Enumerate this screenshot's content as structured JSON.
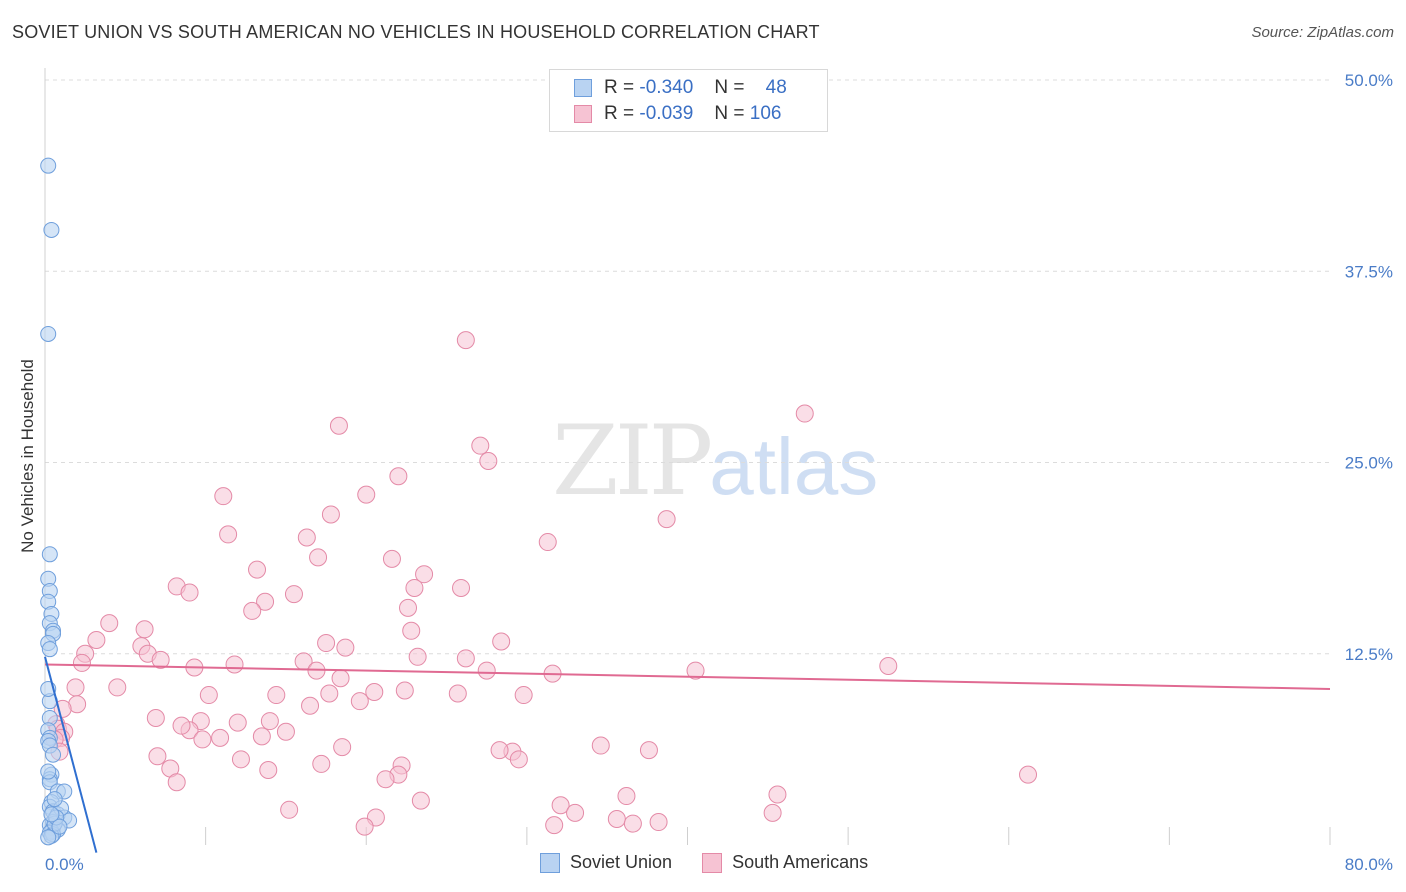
{
  "title": "SOVIET UNION VS SOUTH AMERICAN NO VEHICLES IN HOUSEHOLD CORRELATION CHART",
  "source": "Source: ZipAtlas.com",
  "watermark": {
    "zip": "ZIP",
    "atlas": "atlas"
  },
  "legend": {
    "rows": [
      {
        "r_label": "R =",
        "r_value": "-0.340",
        "n_label": "N =",
        "n_value": "48"
      },
      {
        "r_label": "R =",
        "r_value": "-0.039",
        "n_label": "N =",
        "n_value": "106"
      }
    ]
  },
  "bottom_legend": {
    "soviet": "Soviet Union",
    "south": "South Americans"
  },
  "colors": {
    "blue_fill": "#b9d3f2",
    "blue_stroke": "#6f9fdc",
    "blue_line": "#2f6fd0",
    "pink_fill": "#f6c3d3",
    "pink_stroke": "#e48aa7",
    "pink_line": "#e06a92",
    "grid": "#dcdcdc",
    "tick_text": "#4a7cc7"
  },
  "chart_data": {
    "type": "scatter",
    "title": "SOVIET UNION VS SOUTH AMERICAN NO VEHICLES IN HOUSEHOLD CORRELATION CHART",
    "xlabel": "",
    "ylabel": "No Vehicles in Household",
    "xlim": [
      0,
      80
    ],
    "ylim": [
      0,
      50
    ],
    "x_tick_labels": [
      "0.0%",
      "80.0%"
    ],
    "y_ticks": [
      12.5,
      25.0,
      37.5,
      50.0
    ],
    "y_tick_labels": [
      "12.5%",
      "25.0%",
      "37.5%",
      "50.0%"
    ],
    "grid": true,
    "series": [
      {
        "name": "Soviet Union",
        "r": -0.34,
        "n": 48,
        "trend": {
          "x0": 0.0,
          "y0": 12.3,
          "x1": 3.2,
          "y1": -0.5
        },
        "points": [
          [
            0.2,
            44.4
          ],
          [
            0.4,
            40.2
          ],
          [
            0.2,
            33.4
          ],
          [
            0.3,
            19.0
          ],
          [
            0.2,
            17.4
          ],
          [
            0.3,
            16.6
          ],
          [
            0.2,
            15.9
          ],
          [
            0.4,
            15.1
          ],
          [
            0.3,
            14.5
          ],
          [
            0.5,
            14.0
          ],
          [
            0.5,
            13.8
          ],
          [
            0.2,
            13.2
          ],
          [
            0.3,
            9.4
          ],
          [
            0.3,
            8.3
          ],
          [
            0.2,
            7.5
          ],
          [
            0.3,
            7.0
          ],
          [
            0.2,
            6.8
          ],
          [
            0.3,
            6.5
          ],
          [
            0.4,
            4.6
          ],
          [
            0.3,
            4.3
          ],
          [
            0.3,
            4.1
          ],
          [
            0.8,
            3.5
          ],
          [
            1.2,
            3.5
          ],
          [
            0.4,
            2.8
          ],
          [
            0.3,
            2.5
          ],
          [
            0.5,
            2.2
          ],
          [
            0.8,
            2.0
          ],
          [
            1.2,
            1.8
          ],
          [
            1.5,
            1.6
          ],
          [
            0.5,
            1.5
          ],
          [
            0.3,
            1.3
          ],
          [
            0.5,
            1.1
          ],
          [
            0.8,
            1.0
          ],
          [
            0.4,
            0.9
          ],
          [
            0.3,
            0.8
          ],
          [
            0.5,
            0.7
          ],
          [
            0.4,
            0.6
          ],
          [
            0.2,
            0.5
          ],
          [
            0.6,
            1.4
          ],
          [
            1.0,
            2.4
          ],
          [
            0.7,
            1.8
          ],
          [
            0.2,
            4.8
          ],
          [
            0.6,
            3.0
          ],
          [
            0.9,
            1.2
          ],
          [
            0.3,
            12.8
          ],
          [
            0.5,
            5.9
          ],
          [
            0.2,
            10.2
          ],
          [
            0.4,
            2.0
          ]
        ]
      },
      {
        "name": "South Americans",
        "r": -0.039,
        "n": 106,
        "trend": {
          "x0": 0.0,
          "y0": 11.8,
          "x1": 80.0,
          "y1": 10.2
        },
        "points": [
          [
            26.2,
            33.0
          ],
          [
            18.3,
            27.4
          ],
          [
            27.1,
            26.1
          ],
          [
            27.6,
            25.1
          ],
          [
            22.0,
            24.1
          ],
          [
            20.0,
            22.9
          ],
          [
            11.1,
            22.8
          ],
          [
            17.8,
            21.6
          ],
          [
            38.7,
            21.3
          ],
          [
            11.4,
            20.3
          ],
          [
            16.3,
            20.1
          ],
          [
            31.3,
            19.8
          ],
          [
            17.0,
            18.8
          ],
          [
            21.6,
            18.7
          ],
          [
            13.2,
            18.0
          ],
          [
            23.6,
            17.7
          ],
          [
            8.2,
            16.9
          ],
          [
            9.0,
            16.5
          ],
          [
            25.9,
            16.8
          ],
          [
            23.0,
            16.8
          ],
          [
            15.5,
            16.4
          ],
          [
            13.7,
            15.9
          ],
          [
            12.9,
            15.3
          ],
          [
            22.6,
            15.5
          ],
          [
            4.0,
            14.5
          ],
          [
            6.2,
            14.1
          ],
          [
            22.8,
            14.0
          ],
          [
            3.2,
            13.4
          ],
          [
            28.4,
            13.3
          ],
          [
            17.5,
            13.2
          ],
          [
            6.0,
            13.0
          ],
          [
            18.7,
            12.9
          ],
          [
            2.5,
            12.5
          ],
          [
            6.4,
            12.5
          ],
          [
            16.1,
            12.0
          ],
          [
            26.2,
            12.2
          ],
          [
            23.2,
            12.3
          ],
          [
            7.2,
            12.1
          ],
          [
            2.3,
            11.9
          ],
          [
            11.8,
            11.8
          ],
          [
            9.3,
            11.6
          ],
          [
            16.9,
            11.4
          ],
          [
            27.5,
            11.4
          ],
          [
            18.4,
            10.9
          ],
          [
            31.6,
            11.2
          ],
          [
            40.5,
            11.4
          ],
          [
            1.9,
            10.3
          ],
          [
            4.5,
            10.3
          ],
          [
            10.2,
            9.8
          ],
          [
            17.7,
            9.9
          ],
          [
            14.4,
            9.8
          ],
          [
            29.8,
            9.8
          ],
          [
            20.5,
            10.0
          ],
          [
            22.4,
            10.1
          ],
          [
            19.6,
            9.4
          ],
          [
            25.7,
            9.9
          ],
          [
            2.0,
            9.2
          ],
          [
            16.5,
            9.1
          ],
          [
            1.1,
            8.9
          ],
          [
            6.9,
            8.3
          ],
          [
            9.7,
            8.1
          ],
          [
            14.0,
            8.1
          ],
          [
            9.0,
            7.5
          ],
          [
            12.0,
            8.0
          ],
          [
            0.7,
            7.9
          ],
          [
            0.8,
            7.6
          ],
          [
            1.2,
            7.4
          ],
          [
            8.5,
            7.8
          ],
          [
            13.5,
            7.1
          ],
          [
            15.0,
            7.4
          ],
          [
            1.0,
            7.0
          ],
          [
            10.9,
            7.0
          ],
          [
            0.6,
            6.9
          ],
          [
            9.8,
            6.9
          ],
          [
            18.5,
            6.4
          ],
          [
            0.9,
            6.1
          ],
          [
            29.1,
            6.1
          ],
          [
            28.3,
            6.2
          ],
          [
            34.6,
            6.5
          ],
          [
            37.6,
            6.2
          ],
          [
            7.0,
            5.8
          ],
          [
            12.2,
            5.6
          ],
          [
            17.2,
            5.3
          ],
          [
            22.2,
            5.2
          ],
          [
            29.5,
            5.6
          ],
          [
            7.8,
            5.0
          ],
          [
            13.9,
            4.9
          ],
          [
            22.0,
            4.6
          ],
          [
            21.2,
            4.3
          ],
          [
            61.2,
            4.6
          ],
          [
            8.2,
            4.1
          ],
          [
            36.2,
            3.2
          ],
          [
            45.6,
            3.3
          ],
          [
            23.4,
            2.9
          ],
          [
            32.1,
            2.6
          ],
          [
            15.2,
            2.3
          ],
          [
            33.0,
            2.1
          ],
          [
            45.3,
            2.1
          ],
          [
            20.6,
            1.8
          ],
          [
            35.6,
            1.7
          ],
          [
            38.2,
            1.5
          ],
          [
            36.6,
            1.4
          ],
          [
            31.7,
            1.3
          ],
          [
            19.9,
            1.2
          ],
          [
            52.5,
            11.7
          ],
          [
            47.3,
            28.2
          ]
        ]
      }
    ]
  }
}
